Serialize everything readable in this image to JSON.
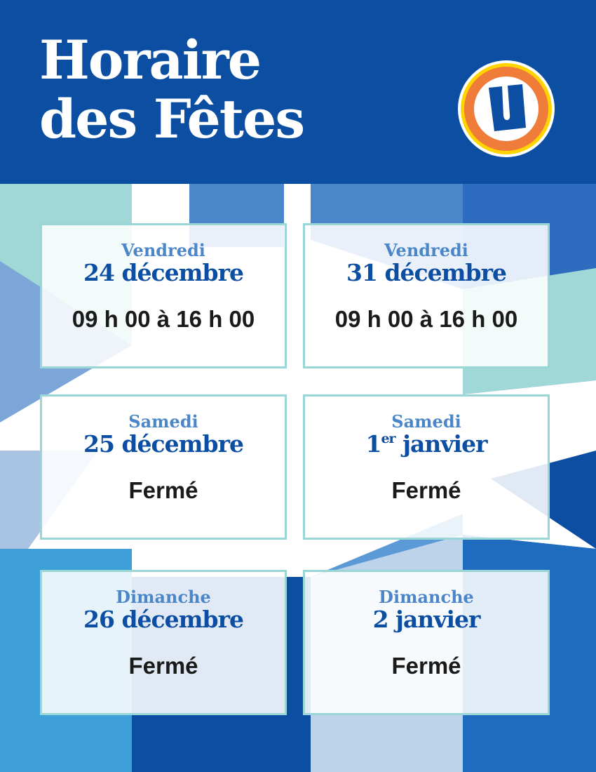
{
  "header": {
    "title_line1": "Horaire",
    "title_line2": "des Fêtes",
    "logo": "U-logo"
  },
  "colors": {
    "brand_blue": "#0b4ea2",
    "light_blue": "#4a86c8",
    "teal": "#9ad6d6",
    "logo_orange": "#f07c3a",
    "logo_yellow": "#ffd400"
  },
  "schedule": [
    {
      "day": "Vendredi",
      "date_num": "24",
      "date_sup": "",
      "date_rest": " décembre",
      "hours": "09 h 00 à 16 h 00"
    },
    {
      "day": "Vendredi",
      "date_num": "31",
      "date_sup": "",
      "date_rest": " décembre",
      "hours": "09 h 00 à 16 h 00"
    },
    {
      "day": "Samedi",
      "date_num": "25",
      "date_sup": "",
      "date_rest": " décembre",
      "hours": "Fermé"
    },
    {
      "day": "Samedi",
      "date_num": "1",
      "date_sup": "er",
      "date_rest": " janvier",
      "hours": "Fermé"
    },
    {
      "day": "Dimanche",
      "date_num": "26",
      "date_sup": "",
      "date_rest": " décembre",
      "hours": "Fermé"
    },
    {
      "day": "Dimanche",
      "date_num": "2",
      "date_sup": "",
      "date_rest": " janvier",
      "hours": "Fermé"
    }
  ]
}
